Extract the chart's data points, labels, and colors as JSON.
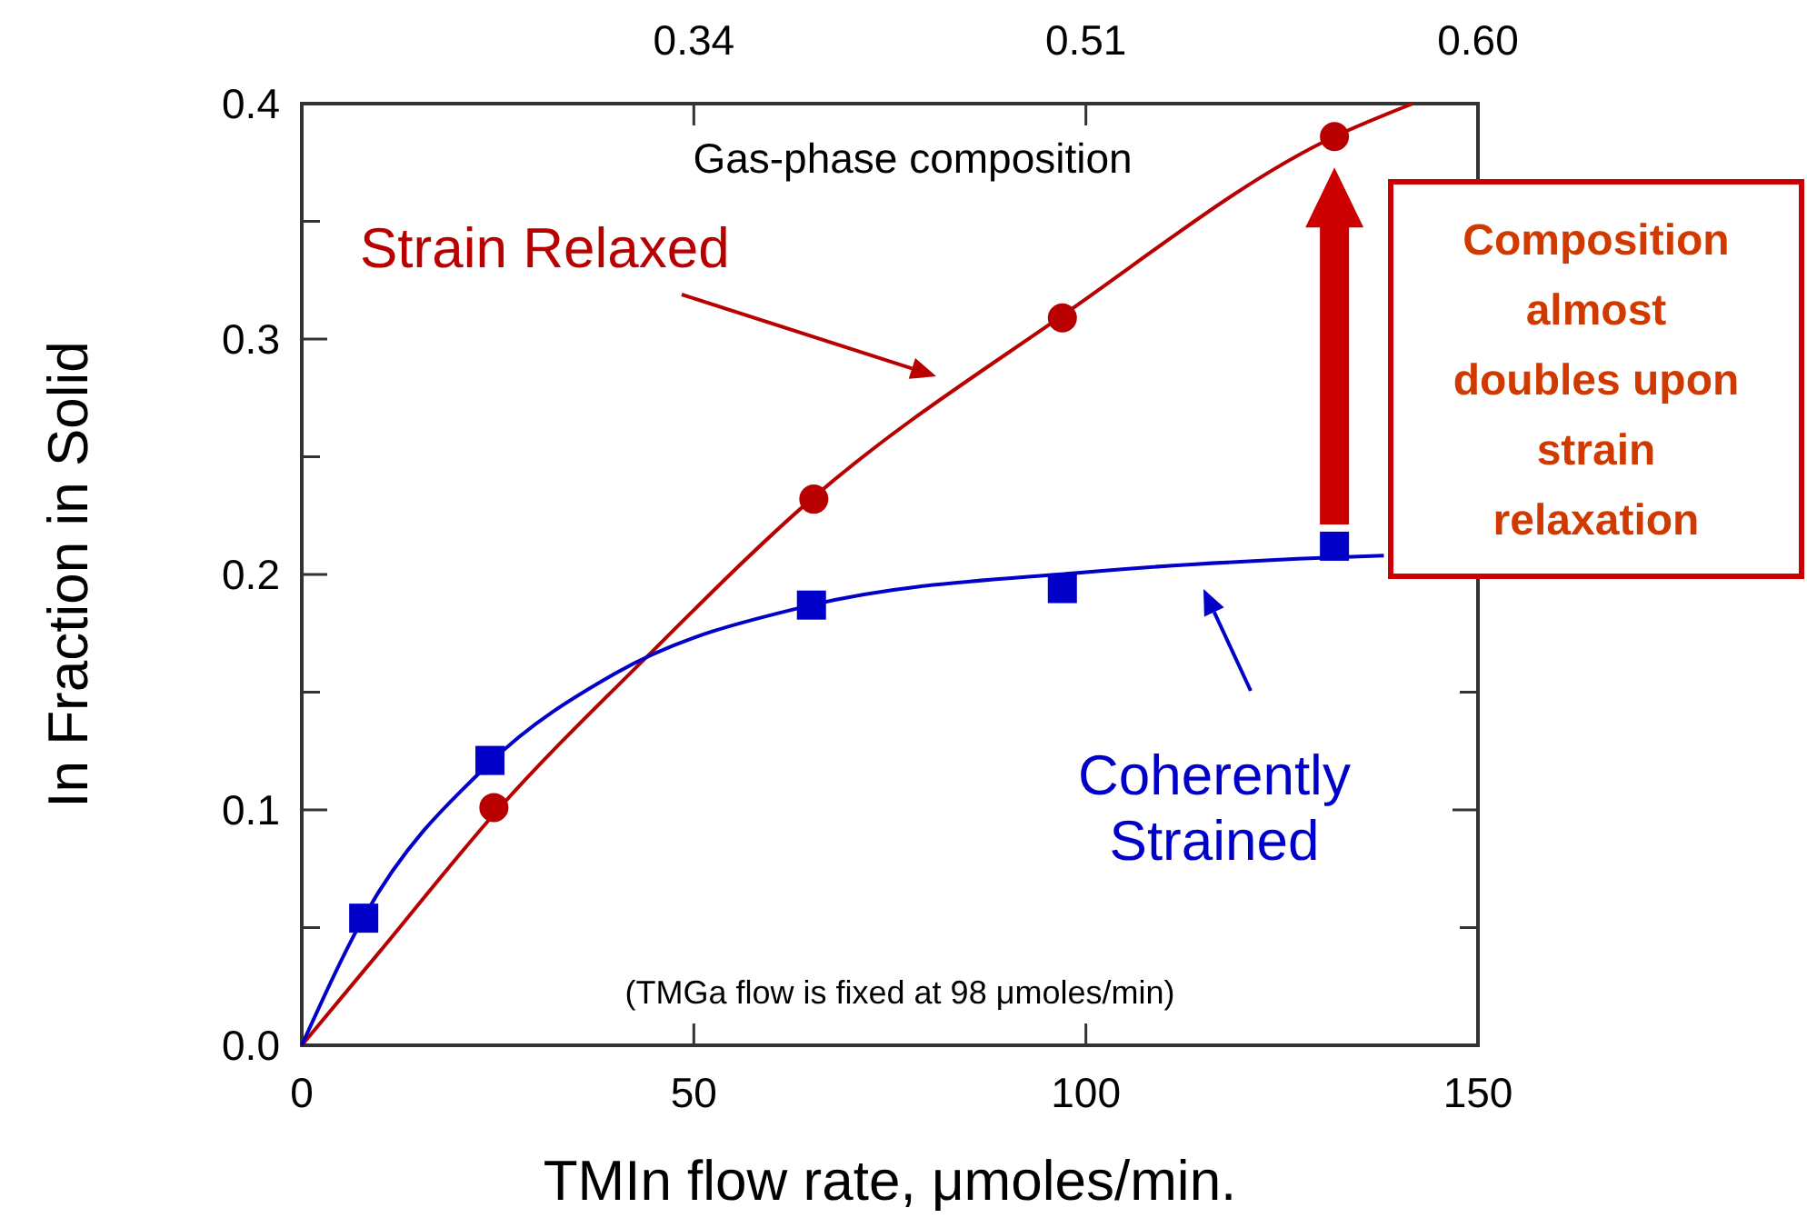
{
  "chart_data": {
    "type": "scatter",
    "xlabel": "TMIn flow rate, μmoles/min.",
    "ylabel": "In Fraction in Solid",
    "xlim": [
      0,
      150
    ],
    "xticks": [
      0,
      50,
      100,
      150
    ],
    "ylim": [
      0,
      0.4
    ],
    "yticks": [
      {
        "value": 0,
        "label": "0.0"
      },
      {
        "value": 0.05,
        "label": null
      },
      {
        "value": 0.1,
        "label": "0.1"
      },
      {
        "value": 0.15,
        "label": null
      },
      {
        "value": 0.2,
        "label": "0.2"
      },
      {
        "value": 0.25,
        "label": null
      },
      {
        "value": 0.3,
        "label": "0.3"
      },
      {
        "value": 0.35,
        "label": null
      },
      {
        "value": 0.4,
        "label": "0.4"
      }
    ],
    "series": [
      {
        "name": "Strain Relaxed",
        "type": "scatter",
        "marker": "circle",
        "color": "#b80000",
        "x": [
          24.5,
          65.3,
          97,
          131.7
        ],
        "values": [
          0.101,
          0.232,
          0.309,
          0.386
        ]
      },
      {
        "name": "Coherently Strained",
        "type": "scatter",
        "marker": "square",
        "color": "#0000c8",
        "x": [
          7.9,
          24,
          65,
          97,
          131.7
        ],
        "values": [
          0.054,
          0.121,
          0.187,
          0.194,
          0.212
        ]
      },
      {
        "type": "line",
        "line_style": "solid",
        "color": "#b80000",
        "x": [
          0,
          10,
          25,
          44,
          65,
          97,
          131.7,
          141.7
        ],
        "values": [
          0,
          0.04,
          0.1,
          0.165,
          0.232,
          0.31,
          0.386,
          0.4
        ]
      },
      {
        "type": "line",
        "line_style": "solid",
        "color": "#0000c8",
        "x": [
          0,
          8,
          24,
          40,
          65,
          100,
          130,
          138
        ],
        "values": [
          0,
          0.055,
          0.12,
          0.158,
          0.187,
          0.201,
          0.207,
          0.208
        ]
      }
    ],
    "annotations": [
      "(TMGa flow is fixed at 98 μmoles/min)",
      "Composition almost doubles upon strain relaxation",
      "Gas-phase composition",
      "0.34",
      "0.51",
      "0.60"
    ]
  }
}
